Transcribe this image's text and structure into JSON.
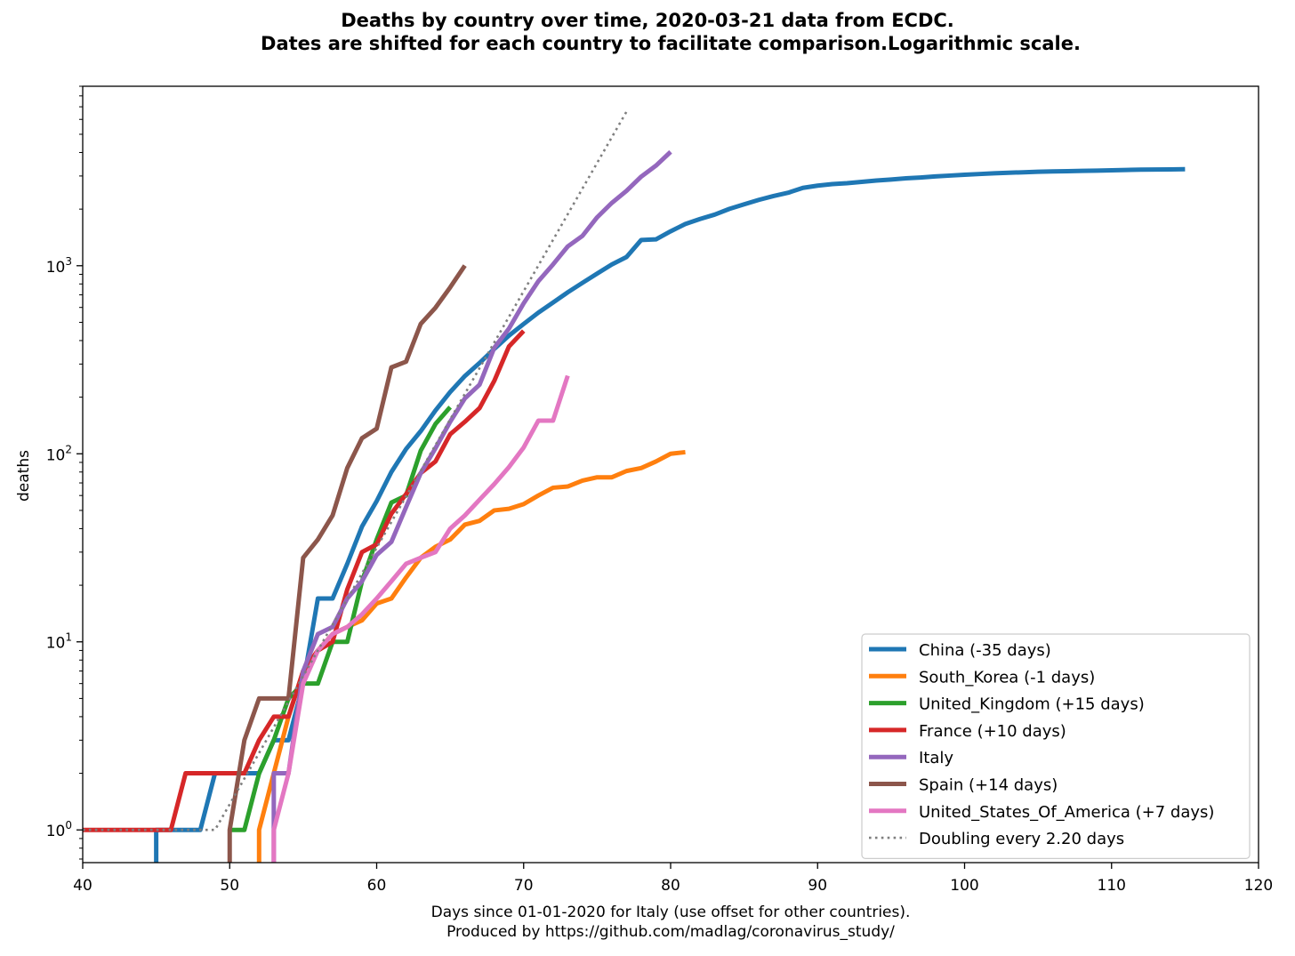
{
  "chart_data": {
    "type": "line",
    "title_line1": "Deaths by country over time, 2020-03-21 data from ECDC.",
    "title_line2": "Dates are shifted for each country to facilitate comparison.Logarithmic scale.",
    "xlabel": "Days since 01-01-2020 for Italy (use offset for other countries).",
    "footer": "Produced by https://github.com/madlag/coronavirus_study/",
    "ylabel": "deaths",
    "xlim": [
      40,
      120
    ],
    "ylim": [
      0.67,
      9000
    ],
    "yscale": "log",
    "x_ticks": [
      "40",
      "50",
      "60",
      "70",
      "80",
      "90",
      "100",
      "110",
      "120"
    ],
    "y_ticks": [
      {
        "base": "10",
        "exp": "0",
        "value": 1
      },
      {
        "base": "10",
        "exp": "1",
        "value": 10
      },
      {
        "base": "10",
        "exp": "2",
        "value": 100
      },
      {
        "base": "10",
        "exp": "3",
        "value": 1000
      }
    ],
    "legend_position": "lower right",
    "series": [
      {
        "name": "China (-35 days)",
        "color": "#1f77b4",
        "style": "solid",
        "x": [
          45,
          45,
          46,
          47,
          48,
          49,
          50,
          51,
          52,
          53,
          54,
          55,
          56,
          57,
          58,
          59,
          60,
          61,
          62,
          63,
          64,
          65,
          66,
          67,
          68,
          69,
          70,
          71,
          72,
          73,
          74,
          75,
          76,
          77,
          78,
          79,
          80,
          81,
          82,
          83,
          84,
          85,
          86,
          87,
          88,
          89,
          90,
          91,
          92,
          93,
          94,
          95,
          96,
          97,
          98,
          99,
          100,
          101,
          102,
          103,
          104,
          105,
          106,
          107,
          108,
          109,
          110,
          111,
          112,
          113,
          114,
          115
        ],
        "y": [
          0.6,
          1,
          1,
          1,
          1,
          2,
          2,
          2,
          2,
          3,
          3,
          6,
          17,
          17,
          26,
          41,
          56,
          80,
          106,
          132,
          170,
          213,
          259,
          304,
          361,
          425,
          490,
          563,
          637,
          722,
          811,
          908,
          1016,
          1113,
          1371,
          1381,
          1524,
          1666,
          1772,
          1870,
          2006,
          2121,
          2239,
          2348,
          2445,
          2595,
          2666,
          2718,
          2747,
          2791,
          2838,
          2873,
          2915,
          2946,
          2984,
          3015,
          3045,
          3073,
          3100,
          3123,
          3140,
          3162,
          3173,
          3180,
          3194,
          3204,
          3218,
          3231,
          3242,
          3249,
          3253,
          3261
        ]
      },
      {
        "name": "South_Korea (-1 days)",
        "color": "#ff7f0e",
        "style": "solid",
        "x": [
          52,
          52,
          53,
          54,
          55,
          56,
          57,
          58,
          59,
          60,
          61,
          62,
          63,
          64,
          65,
          66,
          67,
          68,
          69,
          70,
          71,
          72,
          73,
          74,
          75,
          76,
          77,
          78,
          79,
          80,
          81
        ],
        "y": [
          0.6,
          1,
          2,
          4,
          7,
          9,
          11,
          12,
          13,
          16,
          17,
          22,
          28,
          32,
          35,
          42,
          44,
          50,
          51,
          54,
          60,
          66,
          67,
          72,
          75,
          75,
          81,
          84,
          91,
          100,
          102
        ]
      },
      {
        "name": "United_Kingdom (+15 days)",
        "color": "#2ca02c",
        "style": "solid",
        "x": [
          50,
          51,
          52,
          53,
          54,
          55,
          56,
          57,
          58,
          59,
          60,
          61,
          62,
          63,
          64,
          65
        ],
        "y": [
          1,
          1,
          2,
          3,
          5,
          6,
          6,
          10,
          10,
          21,
          35,
          55,
          60,
          104,
          144,
          177
        ]
      },
      {
        "name": "France (+10 days)",
        "color": "#d62728",
        "style": "solid",
        "x": [
          40,
          46,
          47,
          51,
          52,
          53,
          54,
          55,
          56,
          57,
          58,
          59,
          60,
          61,
          62,
          63,
          64,
          65,
          66,
          67,
          68,
          69,
          70
        ],
        "y": [
          1,
          1,
          2,
          2,
          3,
          4,
          4,
          7,
          9,
          10,
          19,
          30,
          33,
          48,
          61,
          79,
          91,
          127,
          148,
          175,
          244,
          372,
          450
        ]
      },
      {
        "name": "Italy",
        "color": "#9467bd",
        "style": "solid",
        "x": [
          53,
          53,
          54,
          55,
          56,
          57,
          58,
          59,
          60,
          61,
          62,
          63,
          64,
          65,
          66,
          67,
          68,
          69,
          70,
          71,
          72,
          73,
          74,
          75,
          76,
          77,
          78,
          79,
          80
        ],
        "y": [
          0.6,
          2,
          2,
          7,
          11,
          12,
          17,
          21,
          29,
          34,
          52,
          79,
          107,
          148,
          197,
          233,
          366,
          463,
          631,
          827,
          1016,
          1266,
          1441,
          1809,
          2158,
          2503,
          2978,
          3405,
          4032
        ]
      },
      {
        "name": "Spain (+14 days)",
        "color": "#8c564b",
        "style": "solid",
        "x": [
          50,
          50,
          51,
          52,
          53,
          54,
          55,
          56,
          57,
          58,
          59,
          60,
          61,
          62,
          63,
          64,
          65,
          66
        ],
        "y": [
          0.6,
          1,
          3,
          5,
          5,
          5,
          28,
          35,
          47,
          84,
          121,
          136,
          288,
          309,
          491,
          598,
          767,
          1002
        ]
      },
      {
        "name": "United_States_Of_America (+7 days)",
        "color": "#e377c2",
        "style": "solid",
        "x": [
          53,
          53,
          54,
          55,
          56,
          57,
          58,
          59,
          60,
          61,
          62,
          63,
          64,
          65,
          66,
          67,
          68,
          69,
          70,
          71,
          72,
          73
        ],
        "y": [
          0.6,
          1,
          2,
          6,
          9,
          11,
          12,
          14,
          17,
          21,
          26,
          28,
          30,
          40,
          47,
          57,
          69,
          85,
          108,
          150,
          150,
          260
        ]
      },
      {
        "name": "Doubling every 2.20 days",
        "color": "#7f7f7f",
        "style": "dotted",
        "x": [
          40,
          49,
          77
        ],
        "y": [
          1,
          1,
          6600
        ]
      }
    ]
  }
}
